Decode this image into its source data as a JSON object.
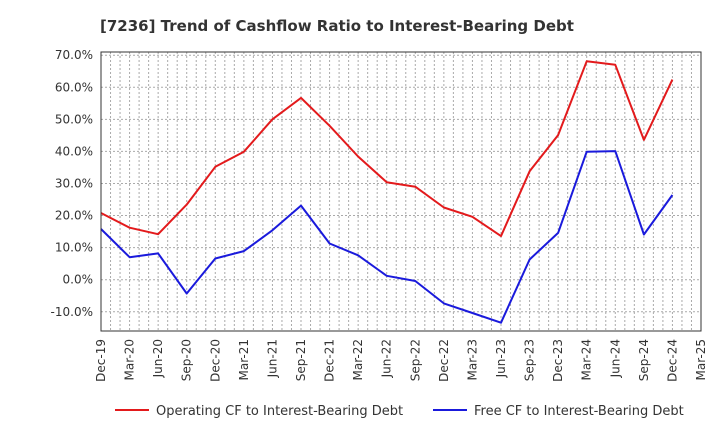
{
  "chart_data": {
    "type": "line",
    "title": "[7236]  Trend of Cashflow Ratio to Interest-Bearing Debt",
    "xlabel": "",
    "ylabel": "",
    "categories": [
      "Dec-19",
      "Mar-20",
      "Jun-20",
      "Sep-20",
      "Dec-20",
      "Mar-21",
      "Jun-21",
      "Sep-21",
      "Dec-21",
      "Mar-22",
      "Jun-22",
      "Sep-22",
      "Dec-22",
      "Mar-23",
      "Jun-23",
      "Sep-23",
      "Dec-23",
      "Mar-24",
      "Jun-24",
      "Sep-24",
      "Dec-24",
      "Mar-25"
    ],
    "ylim": [
      -16,
      71
    ],
    "yticks": [
      -10,
      0,
      10,
      20,
      30,
      40,
      50,
      60,
      70
    ],
    "ytick_labels": [
      "-10.0%",
      "0.0%",
      "10.0%",
      "20.0%",
      "30.0%",
      "40.0%",
      "50.0%",
      "60.0%",
      "70.0%"
    ],
    "grid": true,
    "legend_position": "bottom",
    "series": [
      {
        "name": "Operating CF to Interest-Bearing Debt",
        "color": "#e31a1c",
        "values": [
          20.8,
          16.2,
          14.2,
          23.4,
          35.2,
          39.9,
          50.0,
          56.7,
          48.0,
          38.4,
          30.4,
          29.0,
          22.5,
          19.6,
          13.6,
          33.8,
          45.1,
          68.1,
          67.0,
          43.6,
          62.4,
          null
        ]
      },
      {
        "name": "Free CF to Interest-Bearing Debt",
        "color": "#1a1adc",
        "values": [
          15.8,
          7.0,
          8.2,
          -4.3,
          6.6,
          8.9,
          15.4,
          23.1,
          11.3,
          7.6,
          1.2,
          -0.4,
          -7.4,
          -10.4,
          -13.4,
          6.3,
          14.6,
          39.9,
          40.1,
          14.1,
          26.4,
          null
        ]
      }
    ]
  }
}
